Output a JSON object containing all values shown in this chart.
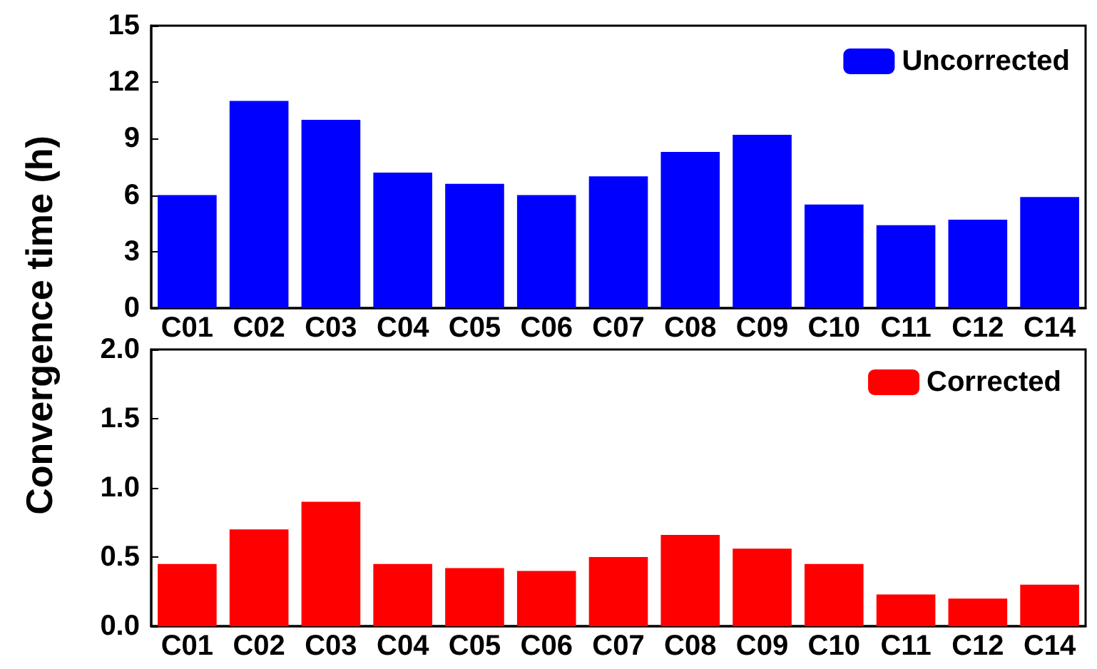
{
  "chart_data": [
    {
      "type": "bar",
      "ylabel": "Convergence time (h)",
      "categories": [
        "C01",
        "C02",
        "C03",
        "C04",
        "C05",
        "C06",
        "C07",
        "C08",
        "C09",
        "C10",
        "C11",
        "C12",
        "C14"
      ],
      "series": [
        {
          "name": "Uncorrected",
          "color": "#0000ff",
          "values": [
            6.0,
            11.0,
            10.0,
            7.2,
            6.6,
            6.0,
            7.0,
            8.3,
            9.2,
            5.5,
            4.4,
            4.7,
            5.9
          ]
        }
      ],
      "ylim": [
        0,
        15
      ],
      "yticks": [
        0,
        3,
        6,
        9,
        12,
        15
      ],
      "legend": "top right",
      "grid": false
    },
    {
      "type": "bar",
      "categories": [
        "C01",
        "C02",
        "C03",
        "C04",
        "C05",
        "C06",
        "C07",
        "C08",
        "C09",
        "C10",
        "C11",
        "C12",
        "C14"
      ],
      "series": [
        {
          "name": "Corrected",
          "color": "#ff0000",
          "values": [
            0.45,
            0.7,
            0.9,
            0.45,
            0.42,
            0.4,
            0.5,
            0.66,
            0.56,
            0.45,
            0.23,
            0.2,
            0.3
          ]
        }
      ],
      "ylim": [
        0,
        2
      ],
      "yticks": [
        {
          "value": 0,
          "label": "0.0"
        },
        {
          "value": 0.5,
          "label": "0.5"
        },
        {
          "value": 1,
          "label": "1.0"
        },
        {
          "value": 1.5,
          "label": "1.5"
        },
        {
          "value": 2,
          "label": "2.0"
        }
      ],
      "legend": "top right",
      "grid": false
    }
  ]
}
